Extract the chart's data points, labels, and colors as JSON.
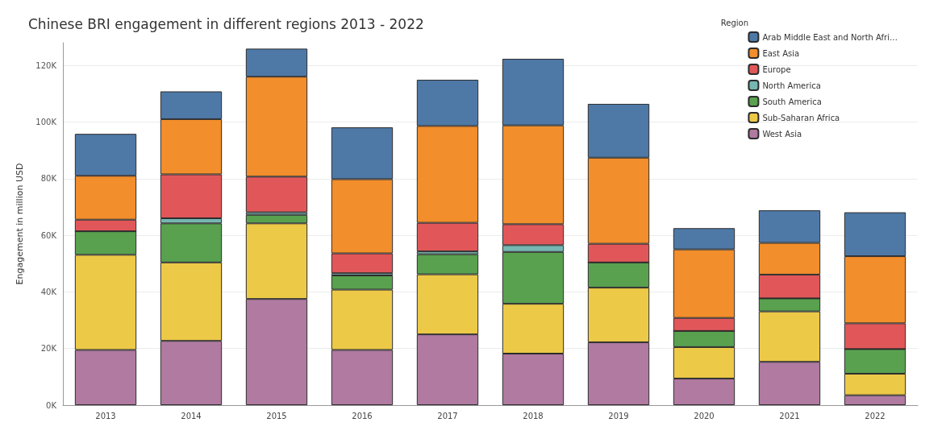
{
  "chart_data": {
    "type": "bar",
    "title": "Chinese BRI engagement in different regions 2013 - 2022",
    "ylabel": "Engagement in million USD",
    "legend_title": "Region",
    "categories": [
      "2013",
      "2014",
      "2015",
      "2016",
      "2017",
      "2018",
      "2019",
      "2020",
      "2021",
      "2022"
    ],
    "stacked": true,
    "legend": "top right",
    "grid": "y",
    "ylim": [
      0,
      128000
    ],
    "yticks": [
      {
        "value": 0,
        "label": "0K"
      },
      {
        "value": 20000,
        "label": "20K"
      },
      {
        "value": 40000,
        "label": "40K"
      },
      {
        "value": 60000,
        "label": "60K"
      },
      {
        "value": 80000,
        "label": "80K"
      },
      {
        "value": 100000,
        "label": "100K"
      },
      {
        "value": 120000,
        "label": "120K"
      }
    ],
    "series": [
      {
        "name": "West Asia",
        "color": "#b07aa1",
        "values": [
          19500,
          22700,
          37500,
          19500,
          25000,
          18200,
          22200,
          9400,
          15300,
          3500
        ]
      },
      {
        "name": "Sub-Saharan Africa",
        "color": "#edc948",
        "values": [
          33600,
          27700,
          26700,
          21300,
          21200,
          17600,
          19300,
          11100,
          17800,
          7600
        ]
      },
      {
        "name": "South America",
        "color": "#59a14f",
        "values": [
          8300,
          13800,
          3000,
          5000,
          7100,
          18300,
          8900,
          5700,
          4600,
          8700
        ]
      },
      {
        "name": "North America",
        "color": "#76b7b2",
        "values": [
          0,
          1800,
          900,
          800,
          1000,
          2400,
          0,
          0,
          0,
          0
        ]
      },
      {
        "name": "Europe",
        "color": "#e15759",
        "values": [
          4100,
          15500,
          12600,
          7000,
          10100,
          7400,
          6600,
          4600,
          8400,
          9100
        ]
      },
      {
        "name": "East Asia",
        "color": "#f28e2b",
        "values": [
          15500,
          19500,
          35300,
          26200,
          34200,
          34900,
          30400,
          24200,
          11200,
          23700
        ]
      },
      {
        "name": "Arab Middle East and North Afri…",
        "color": "#4e79a7",
        "values": [
          14800,
          9800,
          9900,
          18300,
          16300,
          23500,
          19000,
          7500,
          11500,
          15500
        ]
      }
    ]
  }
}
